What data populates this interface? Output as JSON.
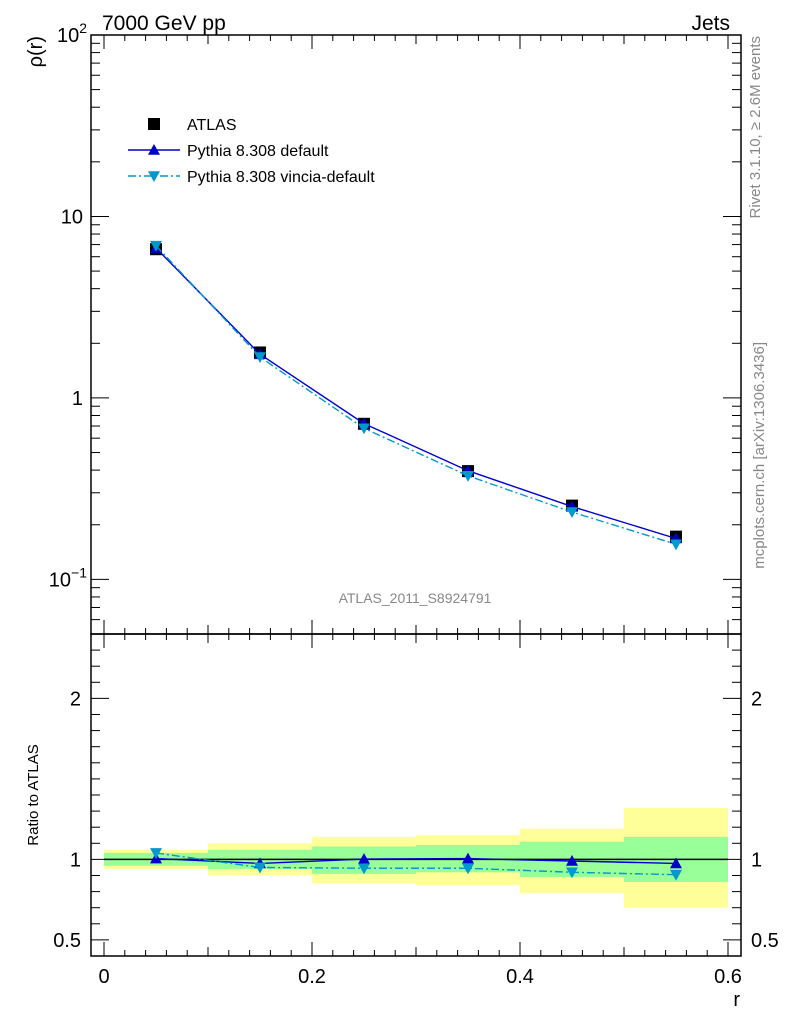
{
  "header": {
    "left": "7000 GeV pp",
    "right": "Jets"
  },
  "side_labels": {
    "rivet": "Rivet 3.1.10, ≥ 2.6M events",
    "mcplots": "mcplots.cern.ch [arXiv:1306.3436]"
  },
  "watermark": "ATLAS_2011_S8924791",
  "chart_data": [
    {
      "type": "line",
      "panel": "main",
      "ylabel": "ρ(r)",
      "yscale": "log",
      "ylim": [
        0.05,
        100
      ],
      "xlim": [
        -0.0125,
        0.6125
      ],
      "yticks": [
        {
          "v": 0.1,
          "label": "10",
          "exp": "−1"
        },
        {
          "v": 1,
          "label": "1"
        },
        {
          "v": 10,
          "label": "10"
        },
        {
          "v": 100,
          "label": "10",
          "exp": "2"
        }
      ],
      "legend_position": "top-left",
      "x": [
        0.05,
        0.15,
        0.25,
        0.35,
        0.45,
        0.55
      ],
      "series": [
        {
          "name": "ATLAS",
          "color": "#000000",
          "marker": "square",
          "line": "none",
          "values": [
            6.6,
            1.78,
            0.72,
            0.395,
            0.255,
            0.172
          ]
        },
        {
          "name": "Pythia 8.308 default",
          "color": "#0000cc",
          "marker": "triangle-up",
          "line": "solid",
          "values": [
            6.7,
            1.74,
            0.722,
            0.397,
            0.252,
            0.168
          ]
        },
        {
          "name": "Pythia 8.308 vincia-default",
          "color": "#0099cc",
          "marker": "triangle-down",
          "line": "dashdot",
          "values": [
            6.9,
            1.68,
            0.68,
            0.372,
            0.235,
            0.156
          ]
        }
      ]
    },
    {
      "type": "line",
      "panel": "ratio",
      "ylabel": "Ratio to ATLAS",
      "xlabel": "r",
      "ylim": [
        0.4,
        2.4
      ],
      "xlim": [
        -0.0125,
        0.6125
      ],
      "xticks": [
        0,
        0.2,
        0.4,
        0.6
      ],
      "xtick_labels": [
        "0",
        "0.2",
        "0.4",
        "0.6"
      ],
      "yticks": [
        0.5,
        1,
        2
      ],
      "ytick_labels": [
        "0.5",
        "1",
        "2"
      ],
      "bands": {
        "x_edges": [
          0,
          0.1,
          0.2,
          0.3,
          0.4,
          0.5,
          0.6
        ],
        "yellow_color": "#ffff99",
        "green_color": "#99ff99",
        "yellow": [
          [
            0.94,
            1.06
          ],
          [
            0.9,
            1.1
          ],
          [
            0.85,
            1.14
          ],
          [
            0.84,
            1.15
          ],
          [
            0.79,
            1.19
          ],
          [
            0.7,
            1.32
          ]
        ],
        "green": [
          [
            0.96,
            1.04
          ],
          [
            0.94,
            1.06
          ],
          [
            0.91,
            1.08
          ],
          [
            0.92,
            1.09
          ],
          [
            0.89,
            1.11
          ],
          [
            0.86,
            1.14
          ]
        ]
      },
      "x": [
        0.05,
        0.15,
        0.25,
        0.35,
        0.45,
        0.55
      ],
      "series": [
        {
          "name": "Pythia 8.308 default",
          "color": "#0000cc",
          "marker": "triangle-up",
          "line": "solid",
          "values": [
            1.005,
            0.975,
            1.002,
            1.005,
            0.99,
            0.975
          ]
        },
        {
          "name": "Pythia 8.308 vincia-default",
          "color": "#0099cc",
          "marker": "triangle-down",
          "line": "dashdot",
          "values": [
            1.04,
            0.95,
            0.945,
            0.945,
            0.92,
            0.905
          ]
        }
      ]
    }
  ]
}
